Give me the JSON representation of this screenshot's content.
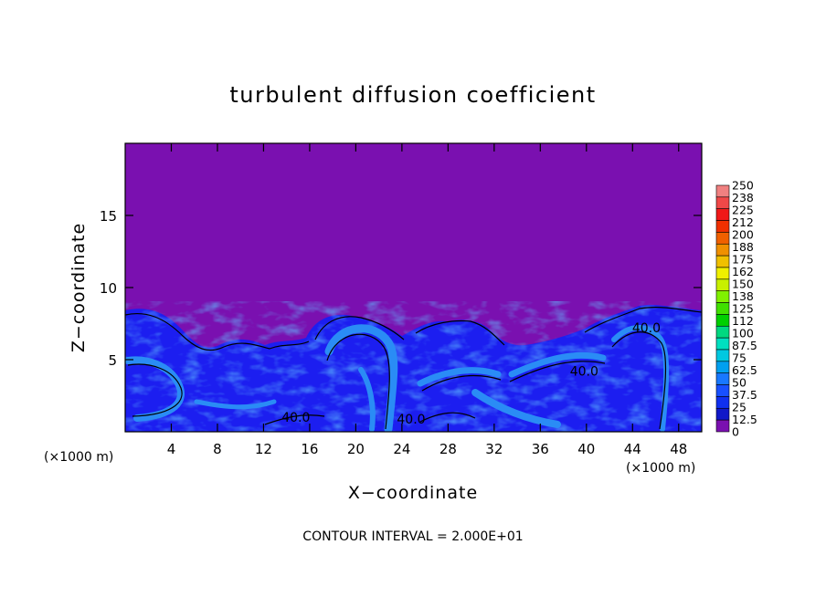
{
  "chart_data": {
    "type": "heatmap",
    "title": "turbulent diffusion coefficient",
    "xlabel": "X−coordinate",
    "ylabel": "Z−coordinate",
    "x_unit_left": "(×1000 m)",
    "x_unit_right": "(×1000 m)",
    "footer": "CONTOUR INTERVAL = 2.000E+01",
    "xlim": [
      0,
      50
    ],
    "ylim": [
      0,
      20
    ],
    "x_ticks": [
      4,
      8,
      12,
      16,
      20,
      24,
      28,
      32,
      36,
      40,
      44,
      48
    ],
    "y_ticks": [
      5,
      10,
      15
    ],
    "x_tick_labels": [
      "4",
      "8",
      "12",
      "16",
      "20",
      "24",
      "28",
      "32",
      "36",
      "40",
      "44",
      "48"
    ],
    "y_tick_labels": [
      "5",
      "10",
      "15"
    ],
    "colorbar": {
      "labels": [
        "250",
        "238",
        "225",
        "212",
        "200",
        "188",
        "175",
        "162",
        "150",
        "138",
        "125",
        "112",
        "100",
        "87.5",
        "75",
        "62.5",
        "50",
        "37.5",
        "25",
        "12.5",
        "0"
      ],
      "colors": [
        "#f08080",
        "#f04848",
        "#f01818",
        "#f03000",
        "#f06000",
        "#f09000",
        "#f0c000",
        "#f0f000",
        "#c8f000",
        "#80f000",
        "#40e000",
        "#00d000",
        "#00d880",
        "#00e0c0",
        "#00c8e0",
        "#00a0f0",
        "#1878ff",
        "#1850ff",
        "#1030f0",
        "#1018c8",
        "#7a10b0"
      ]
    },
    "contour_labels": [
      {
        "text": "40.0",
        "x": 14.8,
        "z": 1.0
      },
      {
        "text": "40.0",
        "x": 24.8,
        "z": 0.9
      },
      {
        "text": "40.0",
        "x": 39.8,
        "z": 4.2
      },
      {
        "text": "40.0",
        "x": 45.2,
        "z": 7.2
      }
    ]
  }
}
